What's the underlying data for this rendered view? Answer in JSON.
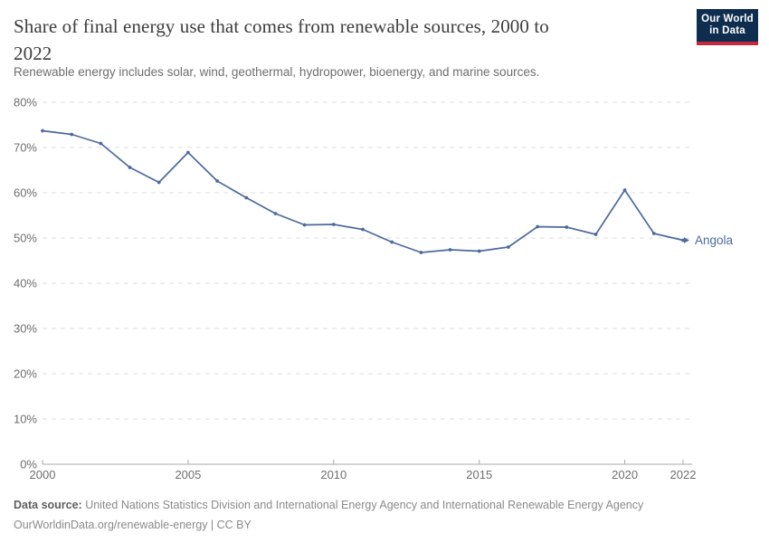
{
  "header": {
    "title": "Share of final energy use that comes from renewable sources, 2000 to 2022",
    "title_lines": [
      "Share of final energy use that comes from renewable sources, 2000 to",
      "2022"
    ],
    "subtitle": "Renewable energy includes solar, wind, geothermal, hydropower, bioenergy, and marine sources.",
    "logo": {
      "line1": "Our World",
      "line2": "in Data",
      "bg_color": "#0f2e4f",
      "accent_color": "#c5293d"
    }
  },
  "chart_data": {
    "type": "line",
    "title": "Share of final energy use that comes from renewable sources, 2000 to 2022",
    "xlabel": "",
    "ylabel": "",
    "xlim": [
      2000,
      2022
    ],
    "ylim": [
      0,
      80
    ],
    "y_tick_format": "percent",
    "grid": "horizontal-dashed",
    "legend_position": "end-of-line-label",
    "x_ticks": [
      2000,
      2005,
      2010,
      2015,
      2020,
      2022
    ],
    "y_ticks": [
      0,
      10,
      20,
      30,
      40,
      50,
      60,
      70,
      80
    ],
    "x": [
      2000,
      2001,
      2002,
      2003,
      2004,
      2005,
      2006,
      2007,
      2008,
      2009,
      2010,
      2011,
      2012,
      2013,
      2014,
      2015,
      2016,
      2017,
      2018,
      2019,
      2020,
      2021,
      2022
    ],
    "series": [
      {
        "name": "Angola",
        "color": "#4C6A9C",
        "values": [
          73.7,
          72.9,
          70.9,
          65.6,
          62.3,
          68.9,
          62.6,
          58.9,
          55.4,
          52.9,
          53.0,
          51.9,
          49.1,
          46.8,
          47.4,
          47.1,
          48.0,
          52.5,
          52.4,
          50.8,
          60.6,
          51.0,
          49.5
        ]
      }
    ]
  },
  "footer": {
    "source_label": "Data source:",
    "source_text": " United Nations Statistics Division and International Energy Agency and International Renewable Energy Agency",
    "license_line": "OurWorldinData.org/renewable-energy | CC BY"
  }
}
